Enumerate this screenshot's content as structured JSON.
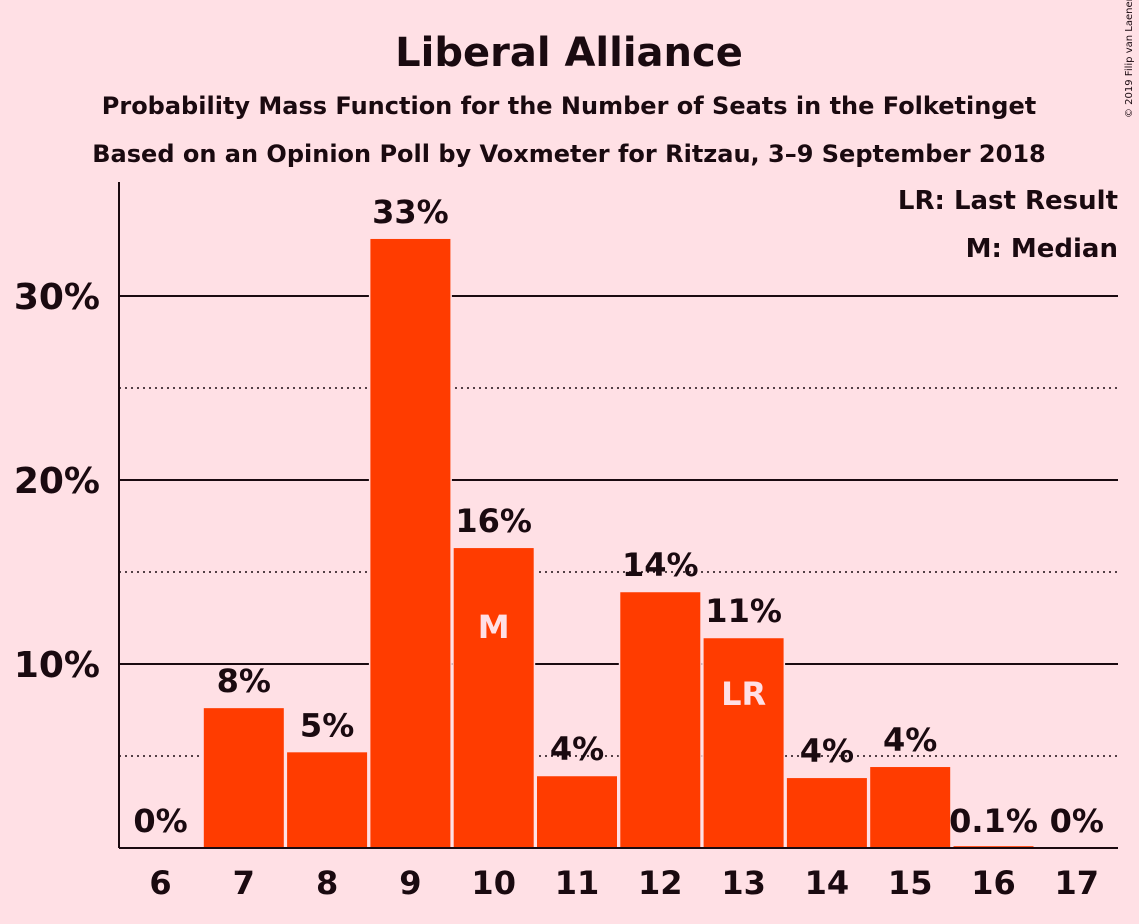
{
  "copyright": "© 2019 Filip van Laenen",
  "chart_data": {
    "type": "bar",
    "title": "Liberal Alliance",
    "subtitle1": "Probability Mass Function for the Number of Seats in the Folketinget",
    "subtitle2": "Based on an Opinion Poll by Voxmeter for Ritzau, 3–9 September 2018",
    "categories": [
      "6",
      "7",
      "8",
      "9",
      "10",
      "11",
      "12",
      "13",
      "14",
      "15",
      "16",
      "17"
    ],
    "values": [
      0,
      7.6,
      5.2,
      33.1,
      16.3,
      3.9,
      13.9,
      11.4,
      3.8,
      4.4,
      0.1,
      0
    ],
    "value_labels": [
      "0%",
      "8%",
      "5%",
      "33%",
      "16%",
      "4%",
      "14%",
      "11%",
      "4%",
      "4%",
      "0.1%",
      "0%"
    ],
    "bar_markers": {
      "10": "M",
      "13": "LR"
    },
    "ylim": [
      0,
      36
    ],
    "yticks": [
      10,
      20,
      30
    ],
    "ytick_labels": [
      "10%",
      "20%",
      "30%"
    ],
    "minor_gridlines": [
      5,
      15,
      25
    ],
    "legend": [
      "LR: Last Result",
      "M: Median"
    ],
    "legend_position": "top-right",
    "colors": {
      "bar": "#ff3c00",
      "background": "#ffe0e5",
      "text": "#1a0a10",
      "marker_text": "#ffe0e5"
    }
  }
}
